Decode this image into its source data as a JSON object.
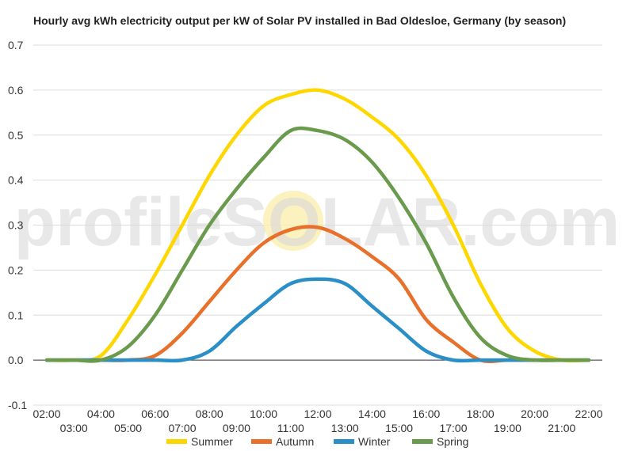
{
  "chart_data": {
    "type": "line",
    "title": "Hourly avg kWh electricity output per kW of Solar PV installed in Bad Oldesloe, Germany (by season)",
    "xlabel": "",
    "ylabel": "",
    "x": [
      "02:00",
      "03:00",
      "04:00",
      "05:00",
      "06:00",
      "07:00",
      "08:00",
      "09:00",
      "10:00",
      "11:00",
      "12:00",
      "13:00",
      "14:00",
      "15:00",
      "16:00",
      "17:00",
      "18:00",
      "19:00",
      "20:00",
      "21:00",
      "22:00"
    ],
    "ylim": [
      -0.1,
      0.7
    ],
    "yticks": [
      "-0.1",
      "0.0",
      "0.1",
      "0.2",
      "0.3",
      "0.4",
      "0.5",
      "0.6",
      "0.7"
    ],
    "grid": true,
    "legend_position": "bottom",
    "watermark": "profileSOLAR.com",
    "series": [
      {
        "name": "Summer",
        "color": "#FFD700",
        "values": [
          0,
          0,
          0.01,
          0.09,
          0.19,
          0.3,
          0.41,
          0.5,
          0.565,
          0.59,
          0.6,
          0.58,
          0.54,
          0.49,
          0.41,
          0.3,
          0.17,
          0.07,
          0.02,
          0,
          0
        ]
      },
      {
        "name": "Autumn",
        "color": "#E8702A",
        "values": [
          0,
          0,
          0,
          0,
          0.01,
          0.06,
          0.13,
          0.2,
          0.26,
          0.29,
          0.295,
          0.27,
          0.23,
          0.18,
          0.09,
          0.04,
          0.0,
          0,
          0,
          0,
          0
        ]
      },
      {
        "name": "Winter",
        "color": "#2A8FC7",
        "values": [
          0,
          0,
          0,
          0,
          0,
          0,
          0.02,
          0.075,
          0.125,
          0.17,
          0.18,
          0.17,
          0.12,
          0.07,
          0.02,
          0,
          0,
          0,
          0,
          0,
          0
        ]
      },
      {
        "name": "Spring",
        "color": "#6A9A4C",
        "values": [
          0,
          0,
          0,
          0.03,
          0.1,
          0.2,
          0.3,
          0.38,
          0.45,
          0.51,
          0.51,
          0.49,
          0.44,
          0.36,
          0.26,
          0.14,
          0.05,
          0.01,
          0,
          0,
          0
        ]
      }
    ]
  }
}
